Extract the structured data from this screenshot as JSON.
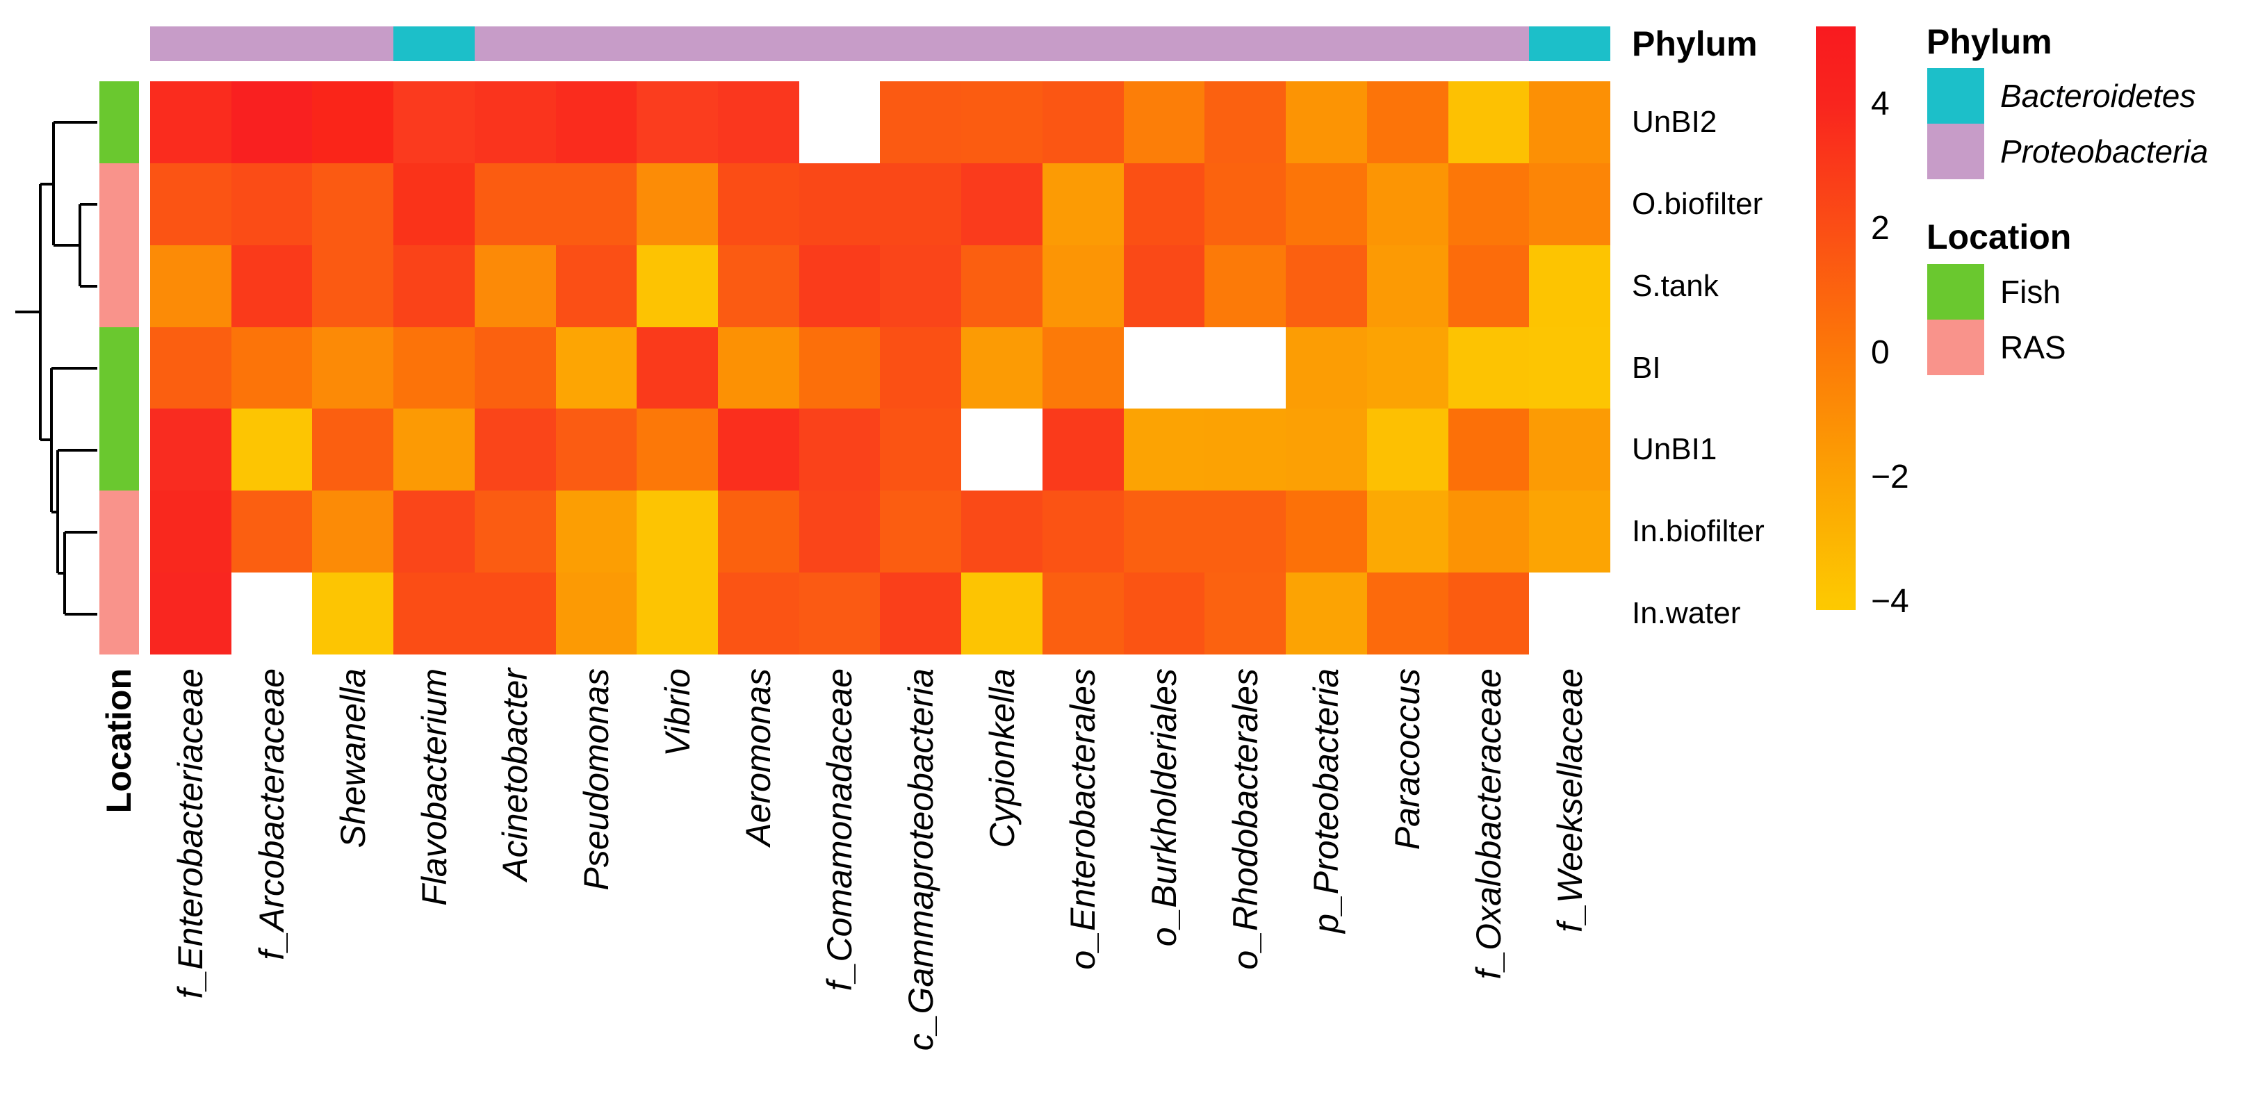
{
  "labels": {
    "phylum_bar_title": "Phylum",
    "location_bar_title": "Location"
  },
  "chart_data": {
    "type": "heatmap",
    "title": "",
    "x": [
      "f_Enterobacteriaceae",
      "f_Arcobacteraceae",
      "Shewanella",
      "Flavobacterium",
      "Acinetobacter",
      "Pseudomonas",
      "Vibrio",
      "Aeromonas",
      "f_Comamonadaceae",
      "c_Gammaproteobacteria",
      "Cypionkella",
      "o_Enterobacterales",
      "o_Burkholderiales",
      "o_Rhodobacterales",
      "p_Proteobacteria",
      "Paracoccus",
      "f_Oxalobacteraceae",
      "f_Weeksellaceae"
    ],
    "y": [
      "UnBI2",
      "O.biofilter",
      "S.tank",
      "BI",
      "UnBI1",
      "In.biofilter",
      "In.water"
    ],
    "col_phyla": [
      "Proteobacteria",
      "Proteobacteria",
      "Proteobacteria",
      "Bacteroidetes",
      "Proteobacteria",
      "Proteobacteria",
      "Proteobacteria",
      "Proteobacteria",
      "Proteobacteria",
      "Proteobacteria",
      "Proteobacteria",
      "Proteobacteria",
      "Proteobacteria",
      "Proteobacteria",
      "Proteobacteria",
      "Proteobacteria",
      "Proteobacteria",
      "Bacteroidetes"
    ],
    "row_locations": [
      "Fish",
      "RAS",
      "RAS",
      "Fish",
      "Fish",
      "RAS",
      "RAS"
    ],
    "values": [
      [
        3.8,
        4.5,
        4.2,
        3.1,
        3.5,
        3.8,
        3.0,
        3.3,
        null,
        1.5,
        1.6,
        1.8,
        -0.1,
        1.3,
        -1.1,
        0.5,
        -3.4,
        -0.9
      ],
      [
        1.8,
        2.2,
        1.6,
        3.4,
        1.6,
        1.6,
        -0.7,
        2.1,
        2.4,
        2.4,
        3.0,
        -1.4,
        2.0,
        1.2,
        0.4,
        -1.1,
        0.3,
        -0.5
      ],
      [
        -0.6,
        3.1,
        1.6,
        2.7,
        -0.6,
        2.0,
        -3.5,
        1.6,
        3.0,
        2.5,
        1.4,
        -0.9,
        2.4,
        0.2,
        1.3,
        -1.3,
        0.8,
        -3.5
      ],
      [
        1.4,
        0.5,
        -0.6,
        0.5,
        1.3,
        -1.9,
        3.1,
        -0.9,
        0.7,
        2.0,
        -1.4,
        0.2,
        null,
        null,
        -1.5,
        -1.8,
        -3.4,
        -3.6
      ],
      [
        3.8,
        -3.6,
        1.4,
        -1.3,
        2.5,
        1.6,
        0.3,
        3.6,
        2.8,
        1.8,
        null,
        3.1,
        -1.8,
        -1.7,
        -1.6,
        -3.3,
        0.6,
        -1.4
      ],
      [
        3.9,
        1.4,
        -0.6,
        2.5,
        1.6,
        -1.6,
        -3.5,
        1.3,
        2.5,
        1.5,
        2.2,
        1.9,
        1.3,
        1.3,
        0.5,
        -2.0,
        -1.0,
        -1.9
      ],
      [
        4.0,
        null,
        -3.6,
        2.1,
        2.1,
        -1.3,
        -3.5,
        1.8,
        1.6,
        2.9,
        -3.5,
        1.4,
        1.8,
        1.2,
        -1.8,
        0.7,
        1.6,
        null
      ]
    ],
    "cell_colors": [
      [
        "#FA2C1E",
        "#F92020",
        "#FA2519",
        "#FB3A1E",
        "#FA341D",
        "#FA2C1D",
        "#FB3D1E",
        "#FA371E",
        null,
        "#FB5A12",
        "#FB5C11",
        "#FB5613",
        "#FC7E08",
        "#FB6110",
        "#FC9404",
        "#FC7409",
        "#FDC102",
        "#FC9005"
      ],
      [
        "#FB5414",
        "#FB4C16",
        "#FB5A12",
        "#FA3319",
        "#FB5C11",
        "#FB5C11",
        "#FC8C06",
        "#FB4D15",
        "#FA4817",
        "#FA4817",
        "#FA3B1C",
        "#FC9B04",
        "#FB5014",
        "#FB630E",
        "#FC7508",
        "#FC9504",
        "#FC7708",
        "#FC8506"
      ],
      [
        "#FC8B06",
        "#FA3A1A",
        "#FB5A12",
        "#FA4318",
        "#FC8A07",
        "#FB4F15",
        "#FDC302",
        "#FB5B12",
        "#FA3C1B",
        "#FA4519",
        "#FB5F10",
        "#FC9505",
        "#FA4917",
        "#FC7A08",
        "#FB6010",
        "#FC9A04",
        "#FC6C0B",
        "#FDC401"
      ],
      [
        "#FB5F10",
        "#FC7409",
        "#FC8A06",
        "#FC7309",
        "#FB610F",
        "#FDA503",
        "#FA3A1B",
        "#FC9104",
        "#FC6F0A",
        "#FB5014",
        "#FC9B04",
        "#FC7A08",
        null,
        null,
        "#FC9D04",
        "#FCA303",
        "#FDC302",
        "#FDC502"
      ],
      [
        "#F92C20",
        "#FDC502",
        "#FB5F10",
        "#FC9A04",
        "#FA4519",
        "#FB5C12",
        "#FC7808",
        "#FA2F1D",
        "#FA421A",
        "#FB5413",
        null,
        "#FA3A1B",
        "#FCA303",
        "#FCA203",
        "#FCA004",
        "#FDC002",
        "#FC7008",
        "#FC9B04"
      ],
      [
        "#F9281E",
        "#FB5F11",
        "#FC8B06",
        "#FA4619",
        "#FB5C12",
        "#FC9E03",
        "#FDC402",
        "#FB610E",
        "#FA4519",
        "#FB5D11",
        "#FA4A17",
        "#FB5314",
        "#FB6010",
        "#FB6010",
        "#FC7108",
        "#FCA903",
        "#FC9304",
        "#FCA403"
      ],
      [
        "#F92620",
        null,
        "#FDC502",
        "#FB4D15",
        "#FB4D15",
        "#FC9A04",
        "#FDC402",
        "#FB5414",
        "#FB5A13",
        "#FA3F1A",
        "#FDC402",
        "#FB5F10",
        "#FB5413",
        "#FB6210",
        "#FCA303",
        "#FC6A0C",
        "#FB5C10",
        null
      ]
    ],
    "na_color": "#FFFFFF",
    "colorbar": {
      "tick_values": [
        4,
        2,
        0,
        -2,
        -4
      ],
      "tick_labels": [
        "4",
        "2",
        "0",
        "−2",
        "−4"
      ],
      "gradient": [
        {
          "stop": 0,
          "color": "#F91A1F"
        },
        {
          "stop": 0.133,
          "color": "#F9251E"
        },
        {
          "stop": 0.346,
          "color": "#FB4E15"
        },
        {
          "stop": 0.56,
          "color": "#FC7908"
        },
        {
          "stop": 0.773,
          "color": "#FCA203"
        },
        {
          "stop": 0.986,
          "color": "#FDC801"
        },
        {
          "stop": 1,
          "color": "#FDC900"
        }
      ]
    },
    "legend_position": "right",
    "grid": false
  },
  "phylum_colors": {
    "Bacteroidetes": "#1CBFC9",
    "Proteobacteria": "#C79CC8"
  },
  "location_colors": {
    "Fish": "#6AC82F",
    "RAS": "#F9938B"
  },
  "legend": {
    "phylum": {
      "title": "Phylum",
      "items": [
        {
          "label": "Bacteroidetes",
          "color": "#1CBFC9",
          "italic": true
        },
        {
          "label": "Proteobacteria",
          "color": "#C79CC8",
          "italic": true
        }
      ]
    },
    "location": {
      "title": "Location",
      "items": [
        {
          "label": "Fish",
          "color": "#6AC82F",
          "italic": false
        },
        {
          "label": "RAS",
          "color": "#F9938B",
          "italic": false
        }
      ]
    }
  },
  "dendrogram": {
    "structure": "((UnBI2,(O.biofilter,S.tank)),(BI,(UnBI1,(In.biofilter,In.water))))",
    "segments": [
      [
        140,
        176,
        77,
        176
      ],
      [
        140,
        294,
        115,
        294
      ],
      [
        140,
        412,
        115,
        412
      ],
      [
        115,
        294,
        115,
        412
      ],
      [
        115,
        353,
        77,
        353
      ],
      [
        77,
        176,
        77,
        353
      ],
      [
        77,
        265,
        58,
        265
      ],
      [
        140,
        530,
        74,
        530
      ],
      [
        140,
        648,
        83,
        648
      ],
      [
        140,
        766,
        93,
        766
      ],
      [
        140,
        884,
        93,
        884
      ],
      [
        93,
        766,
        93,
        884
      ],
      [
        93,
        825,
        83,
        825
      ],
      [
        83,
        648,
        83,
        825
      ],
      [
        83,
        737,
        74,
        737
      ],
      [
        74,
        530,
        74,
        737
      ],
      [
        74,
        633,
        58,
        633
      ],
      [
        58,
        265,
        58,
        633
      ],
      [
        58,
        449,
        22,
        449
      ]
    ]
  }
}
